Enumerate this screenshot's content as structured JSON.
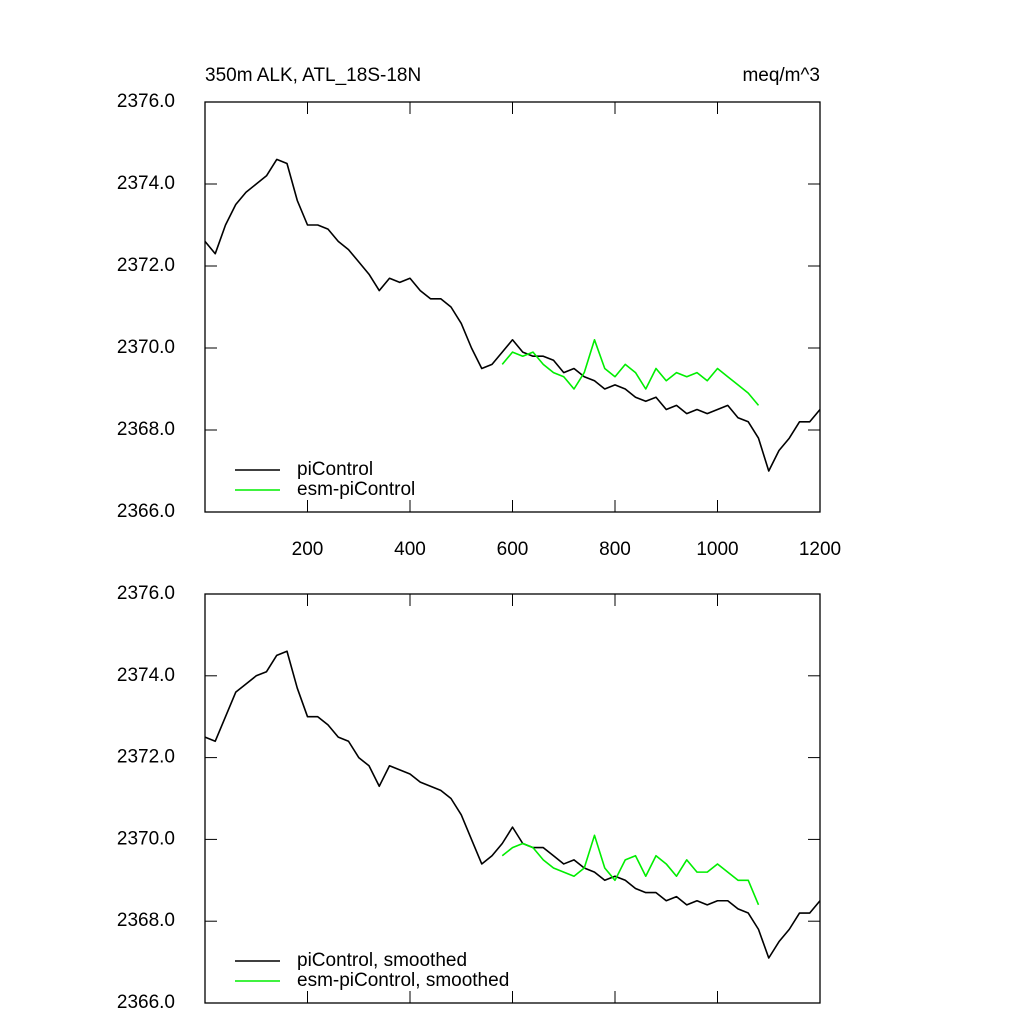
{
  "chart_data": [
    {
      "type": "line",
      "title": "350m ALK, ATL_18S-18N",
      "units": "meq/m^3",
      "x": [
        0,
        20,
        40,
        60,
        80,
        100,
        120,
        140,
        160,
        180,
        200,
        220,
        240,
        260,
        280,
        300,
        320,
        340,
        360,
        380,
        400,
        420,
        440,
        460,
        480,
        500,
        520,
        540,
        560,
        580,
        600,
        620,
        640,
        660,
        680,
        700,
        720,
        740,
        760,
        780,
        800,
        820,
        840,
        860,
        880,
        900,
        920,
        940,
        960,
        980,
        1000,
        1020,
        1040,
        1060,
        1080,
        1100,
        1120,
        1140,
        1160,
        1180,
        1200
      ],
      "series": [
        {
          "name": "piControl",
          "color": "#000000",
          "values": [
            2372.6,
            2372.3,
            2373.0,
            2373.5,
            2373.8,
            2374.0,
            2374.2,
            2374.6,
            2374.5,
            2373.6,
            2373.0,
            2373.0,
            2372.9,
            2372.6,
            2372.4,
            2372.1,
            2371.8,
            2371.4,
            2371.7,
            2371.6,
            2371.7,
            2371.4,
            2371.2,
            2371.2,
            2371.0,
            2370.6,
            2370.0,
            2369.5,
            2369.6,
            2369.9,
            2370.2,
            2369.9,
            2369.8,
            2369.8,
            2369.7,
            2369.4,
            2369.5,
            2369.3,
            2369.2,
            2369.0,
            2369.1,
            2369.0,
            2368.8,
            2368.7,
            2368.8,
            2368.5,
            2368.6,
            2368.4,
            2368.5,
            2368.4,
            2368.5,
            2368.6,
            2368.3,
            2368.2,
            2367.8,
            2367.0,
            2367.5,
            2367.8,
            2368.2,
            2368.2,
            2368.5
          ]
        },
        {
          "name": "esm-piControl",
          "color": "#00ee00",
          "values": [
            null,
            null,
            null,
            null,
            null,
            null,
            null,
            null,
            null,
            null,
            null,
            null,
            null,
            null,
            null,
            null,
            null,
            null,
            null,
            null,
            null,
            null,
            null,
            null,
            null,
            null,
            null,
            null,
            null,
            2369.6,
            2369.9,
            2369.8,
            2369.9,
            2369.6,
            2369.4,
            2369.3,
            2369.0,
            2369.4,
            2370.2,
            2369.5,
            2369.3,
            2369.6,
            2369.4,
            2369.0,
            2369.5,
            2369.2,
            2369.4,
            2369.3,
            2369.4,
            2369.2,
            2369.5,
            2369.3,
            2369.1,
            2368.9,
            2368.6,
            null,
            null,
            null,
            null,
            null,
            null
          ]
        }
      ],
      "xlim": [
        0,
        1200
      ],
      "xticks": [
        200,
        400,
        600,
        800,
        1000,
        1200
      ],
      "x_tick_labels": true,
      "ylim": [
        2366,
        2376
      ],
      "yticks": [
        {
          "value": 2366,
          "label": "2366.0"
        },
        {
          "value": 2368,
          "label": "2368.0"
        },
        {
          "value": 2370,
          "label": "2370.0"
        },
        {
          "value": 2372,
          "label": "2372.0"
        },
        {
          "value": 2374,
          "label": "2374.0"
        },
        {
          "value": 2376,
          "label": "2376.0"
        }
      ],
      "legend": "lower left"
    },
    {
      "type": "line",
      "x": [
        0,
        20,
        40,
        60,
        80,
        100,
        120,
        140,
        160,
        180,
        200,
        220,
        240,
        260,
        280,
        300,
        320,
        340,
        360,
        380,
        400,
        420,
        440,
        460,
        480,
        500,
        520,
        540,
        560,
        580,
        600,
        620,
        640,
        660,
        680,
        700,
        720,
        740,
        760,
        780,
        800,
        820,
        840,
        860,
        880,
        900,
        920,
        940,
        960,
        980,
        1000,
        1020,
        1040,
        1060,
        1080,
        1100,
        1120,
        1140,
        1160,
        1180,
        1200
      ],
      "series": [
        {
          "name": "piControl, smoothed",
          "color": "#000000",
          "values": [
            2372.5,
            2372.4,
            2373.0,
            2373.6,
            2373.8,
            2374.0,
            2374.1,
            2374.5,
            2374.6,
            2373.7,
            2373.0,
            2373.0,
            2372.8,
            2372.5,
            2372.4,
            2372.0,
            2371.8,
            2371.3,
            2371.8,
            2371.7,
            2371.6,
            2371.4,
            2371.3,
            2371.2,
            2371.0,
            2370.6,
            2370.0,
            2369.4,
            2369.6,
            2369.9,
            2370.3,
            2369.9,
            2369.8,
            2369.8,
            2369.6,
            2369.4,
            2369.5,
            2369.3,
            2369.2,
            2369.0,
            2369.1,
            2369.0,
            2368.8,
            2368.7,
            2368.7,
            2368.5,
            2368.6,
            2368.4,
            2368.5,
            2368.4,
            2368.5,
            2368.5,
            2368.3,
            2368.2,
            2367.8,
            2367.1,
            2367.5,
            2367.8,
            2368.2,
            2368.2,
            2368.5
          ]
        },
        {
          "name": "esm-piControl, smoothed",
          "color": "#00ee00",
          "values": [
            null,
            null,
            null,
            null,
            null,
            null,
            null,
            null,
            null,
            null,
            null,
            null,
            null,
            null,
            null,
            null,
            null,
            null,
            null,
            null,
            null,
            null,
            null,
            null,
            null,
            null,
            null,
            null,
            null,
            2369.6,
            2369.8,
            2369.9,
            2369.8,
            2369.5,
            2369.3,
            2369.2,
            2369.1,
            2369.3,
            2370.1,
            2369.3,
            2369.0,
            2369.5,
            2369.6,
            2369.1,
            2369.6,
            2369.4,
            2369.1,
            2369.5,
            2369.2,
            2369.2,
            2369.4,
            2369.2,
            2369.0,
            2369.0,
            2368.4,
            null,
            null,
            null,
            null,
            null,
            null
          ]
        }
      ],
      "xlim": [
        0,
        1200
      ],
      "xticks": [
        200,
        400,
        600,
        800,
        1000,
        1200
      ],
      "x_tick_labels": false,
      "ylim": [
        2366,
        2376
      ],
      "yticks": [
        {
          "value": 2366,
          "label": "2366.0"
        },
        {
          "value": 2368,
          "label": "2368.0"
        },
        {
          "value": 2370,
          "label": "2370.0"
        },
        {
          "value": 2372,
          "label": "2372.0"
        },
        {
          "value": 2374,
          "label": "2374.0"
        },
        {
          "value": 2376,
          "label": "2376.0"
        }
      ],
      "legend": "lower left"
    }
  ]
}
